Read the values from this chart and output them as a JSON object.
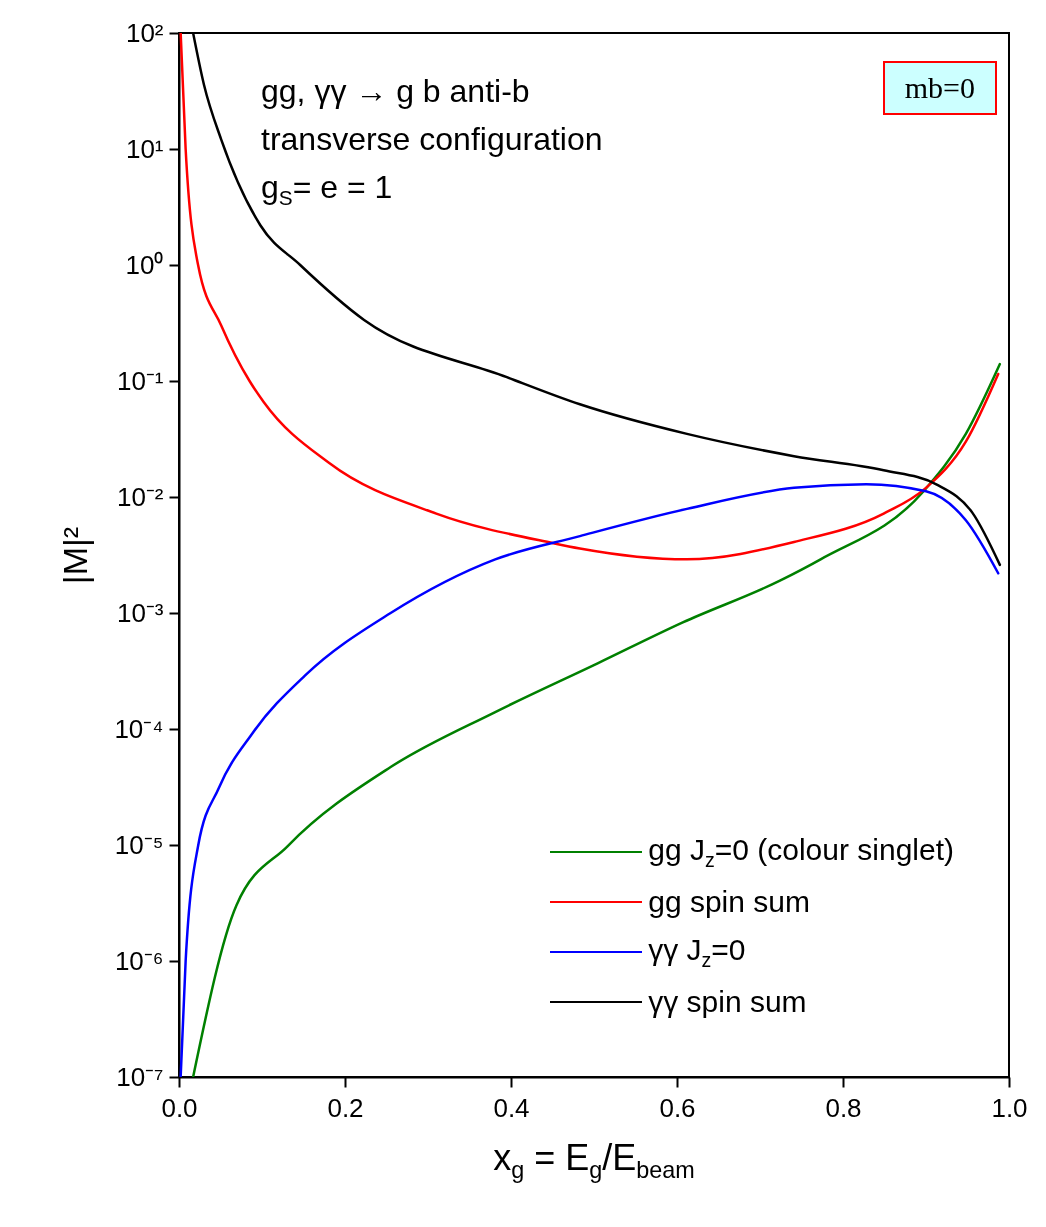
{
  "chart_data": {
    "type": "line",
    "xlabel": "x$_{g}$ = E$_{g}$/E$_{beam}$",
    "ylabel": "|M|²",
    "annotations": [
      "gg, γγ → g b anti-b",
      "transverse configuration",
      "g$_{S}$= e = 1",
      "mb=0"
    ],
    "xlim": [
      0,
      1
    ],
    "xticks": [
      {
        "value": 0,
        "label": "0.0"
      },
      0.2,
      0.4,
      0.6,
      0.8,
      {
        "value": 1,
        "label": "1.0"
      }
    ],
    "ylim": [
      1e-07,
      100
    ],
    "yticks": [
      {
        "value": 1e-07,
        "label": "10⁻⁷"
      },
      {
        "value": 1e-06,
        "label": "10⁻⁶"
      },
      {
        "value": 1e-05,
        "label": "10⁻⁵"
      },
      {
        "value": 0.0001,
        "label": "10⁻⁴"
      },
      {
        "value": 0.001,
        "label": "10⁻³"
      },
      {
        "value": 0.01,
        "label": "10⁻²"
      },
      {
        "value": 0.1,
        "label": "10⁻¹"
      },
      {
        "value": 1,
        "label": "10⁰"
      },
      {
        "value": 10,
        "label": "10¹"
      },
      {
        "value": 100,
        "label": "10²"
      }
    ],
    "log": true,
    "legend": "bottom right",
    "series": [
      {
        "name": "gg J$_{z}$=0 (colour singlet)",
        "color": "#008000",
        "x": [
          0.017,
          0.069,
          0.131,
          0.255,
          0.381,
          0.505,
          0.607,
          0.724,
          0.773,
          0.896,
          0.948,
          0.989
        ],
        "values": [
          1e-07,
          3e-06,
          9.8e-06,
          4.7e-05,
          0.00014,
          0.00037,
          0.00083,
          0.0019,
          0.0029,
          0.011,
          0.035,
          0.14
        ]
      },
      {
        "name": "gg spin sum",
        "color": "#ff0000",
        "x": [
          0.002,
          0.008,
          0.023,
          0.051,
          0.085,
          0.102,
          0.181,
          0.31,
          0.451,
          0.483,
          0.612,
          0.741,
          0.849,
          0.9,
          0.948,
          0.987
        ],
        "values": [
          100,
          10,
          1,
          0.3,
          0.1,
          0.066,
          0.0196,
          0.0072,
          0.004,
          0.0036,
          0.0029,
          0.0041,
          0.0072,
          0.012,
          0.03,
          0.115
        ]
      },
      {
        "name": "γγ J$_{z}$=0",
        "color": "#0000ff",
        "x": [
          0.002,
          0.008,
          0.023,
          0.048,
          0.089,
          0.152,
          0.255,
          0.381,
          0.483,
          0.612,
          0.741,
          0.828,
          0.9,
          0.948,
          0.987
        ],
        "values": [
          1e-07,
          1e-06,
          9.8e-06,
          3.1e-05,
          9.3e-05,
          0.00029,
          0.001,
          0.0029,
          0.0046,
          0.0079,
          0.012,
          0.0129,
          0.0112,
          0.0063,
          0.0022
        ]
      },
      {
        "name": "γγ spin sum",
        "color": "#000000",
        "x": [
          0.017,
          0.03,
          0.051,
          0.098,
          0.146,
          0.223,
          0.395,
          0.483,
          0.612,
          0.741,
          0.849,
          0.913,
          0.956,
          0.989
        ],
        "values": [
          100,
          36,
          12,
          2.2,
          1,
          0.336,
          0.108,
          0.063,
          0.035,
          0.0225,
          0.017,
          0.0128,
          0.0073,
          0.0026
        ]
      }
    ]
  }
}
